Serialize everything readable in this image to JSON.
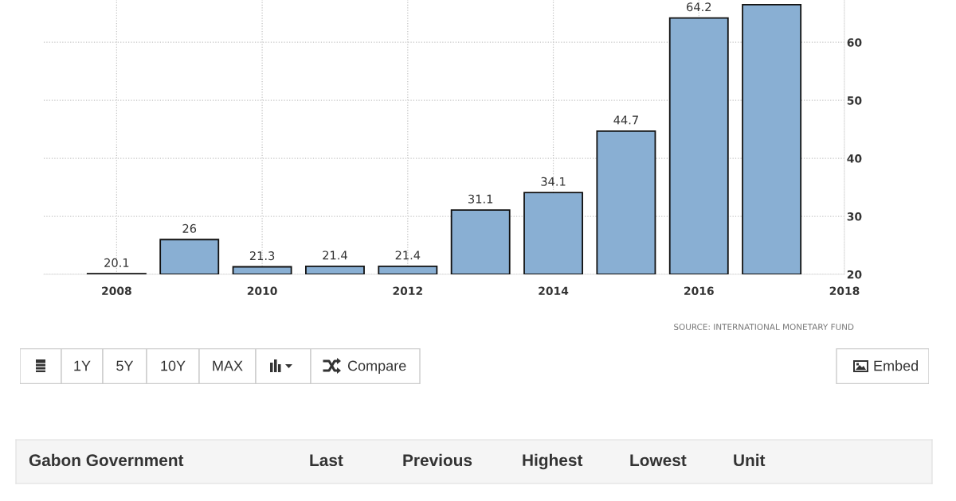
{
  "chart_data": [
    {
      "type": "bar",
      "x": [
        2008,
        2009,
        2010,
        2011,
        2012,
        2013,
        2014,
        2015,
        2016,
        2017
      ],
      "values": [
        20.1,
        26,
        21.3,
        21.4,
        21.4,
        31.1,
        34.1,
        44.7,
        64.2,
        66.5
      ],
      "color": "#89afd3",
      "value_labels": [
        "20.1",
        "26",
        "21.3",
        "21.4",
        "21.4",
        "31.1",
        "34.1",
        "44.7",
        "64.2",
        null
      ],
      "xlim": [
        2007,
        2018
      ],
      "xticks": [
        2008,
        2010,
        2012,
        2014,
        2016,
        2018
      ],
      "ylim": [
        20,
        67.3
      ],
      "yticks": [
        20,
        30,
        40,
        50,
        60
      ],
      "grid": true,
      "annotations": [
        "SOURCE: INTERNATIONAL MONETARY FUND"
      ]
    },
    {
      "type": "other",
      "annotations": [
        "1Y",
        "5Y",
        "10Y",
        "MAX",
        "Compare",
        "Embed"
      ]
    },
    {
      "type": "other",
      "annotations": [
        "Gabon Government",
        "Last",
        "Previous",
        "Highest",
        "Lowest",
        "Unit"
      ]
    }
  ]
}
